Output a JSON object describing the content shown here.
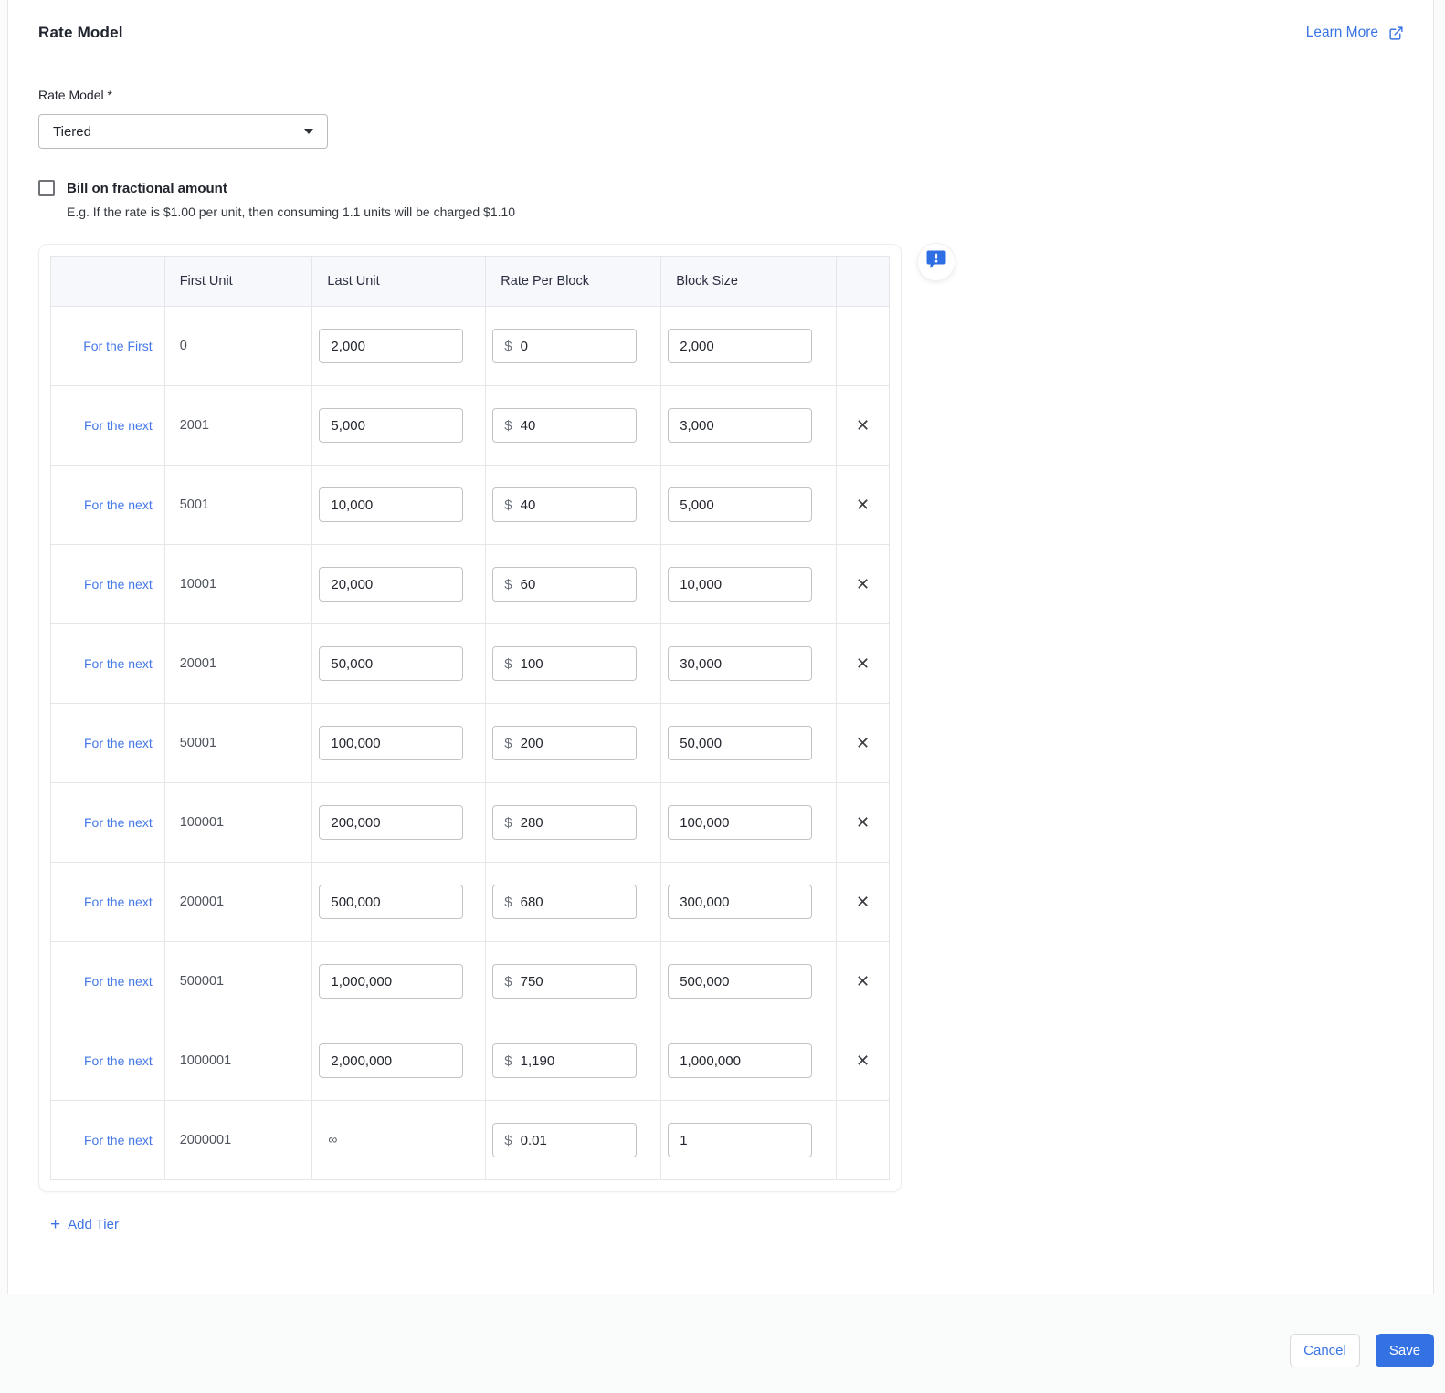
{
  "header": {
    "title": "Rate Model",
    "learn_more_label": "Learn More"
  },
  "form": {
    "rate_model_label": "Rate Model *",
    "rate_model_value": "Tiered",
    "fractional_label": "Bill on fractional amount",
    "fractional_helper": "E.g. If the rate is $1.00 per unit, then consuming 1.1 units will be charged $1.10",
    "fractional_checked": false
  },
  "table": {
    "headers": {
      "row_label": "",
      "first_unit": "First Unit",
      "last_unit": "Last Unit",
      "rate_per_block": "Rate Per Block",
      "block_size": "Block Size",
      "actions": ""
    },
    "currency_symbol": "$",
    "infinity_symbol": "∞",
    "delete_glyph": "✕",
    "rows": [
      {
        "label": "For the First",
        "first_unit": "0",
        "last_unit": "2,000",
        "infinite": false,
        "rate": "0",
        "block_size": "2,000",
        "deletable": false
      },
      {
        "label": "For the next",
        "first_unit": "2001",
        "last_unit": "5,000",
        "infinite": false,
        "rate": "40",
        "block_size": "3,000",
        "deletable": true
      },
      {
        "label": "For the next",
        "first_unit": "5001",
        "last_unit": "10,000",
        "infinite": false,
        "rate": "40",
        "block_size": "5,000",
        "deletable": true
      },
      {
        "label": "For the next",
        "first_unit": "10001",
        "last_unit": "20,000",
        "infinite": false,
        "rate": "60",
        "block_size": "10,000",
        "deletable": true
      },
      {
        "label": "For the next",
        "first_unit": "20001",
        "last_unit": "50,000",
        "infinite": false,
        "rate": "100",
        "block_size": "30,000",
        "deletable": true
      },
      {
        "label": "For the next",
        "first_unit": "50001",
        "last_unit": "100,000",
        "infinite": false,
        "rate": "200",
        "block_size": "50,000",
        "deletable": true
      },
      {
        "label": "For the next",
        "first_unit": "100001",
        "last_unit": "200,000",
        "infinite": false,
        "rate": "280",
        "block_size": "100,000",
        "deletable": true
      },
      {
        "label": "For the next",
        "first_unit": "200001",
        "last_unit": "500,000",
        "infinite": false,
        "rate": "680",
        "block_size": "300,000",
        "deletable": true
      },
      {
        "label": "For the next",
        "first_unit": "500001",
        "last_unit": "1,000,000",
        "infinite": false,
        "rate": "750",
        "block_size": "500,000",
        "deletable": true
      },
      {
        "label": "For the next",
        "first_unit": "1000001",
        "last_unit": "2,000,000",
        "infinite": false,
        "rate": "1,190",
        "block_size": "1,000,000",
        "deletable": true
      },
      {
        "label": "For the next",
        "first_unit": "2000001",
        "last_unit": "∞",
        "infinite": true,
        "rate": "0.01",
        "block_size": "1",
        "deletable": false
      }
    ]
  },
  "add_tier": {
    "plus": "+",
    "label": "Add Tier"
  },
  "footer": {
    "cancel_label": "Cancel",
    "save_label": "Save"
  },
  "colors": {
    "accent_blue": "#3b74e4",
    "save_button_bg": "#3471e3",
    "table_header_bg": "#f7f8fc",
    "row_label_col_bg": "#f8fafd",
    "bubble_icon_blue": "#2e6fe3"
  }
}
